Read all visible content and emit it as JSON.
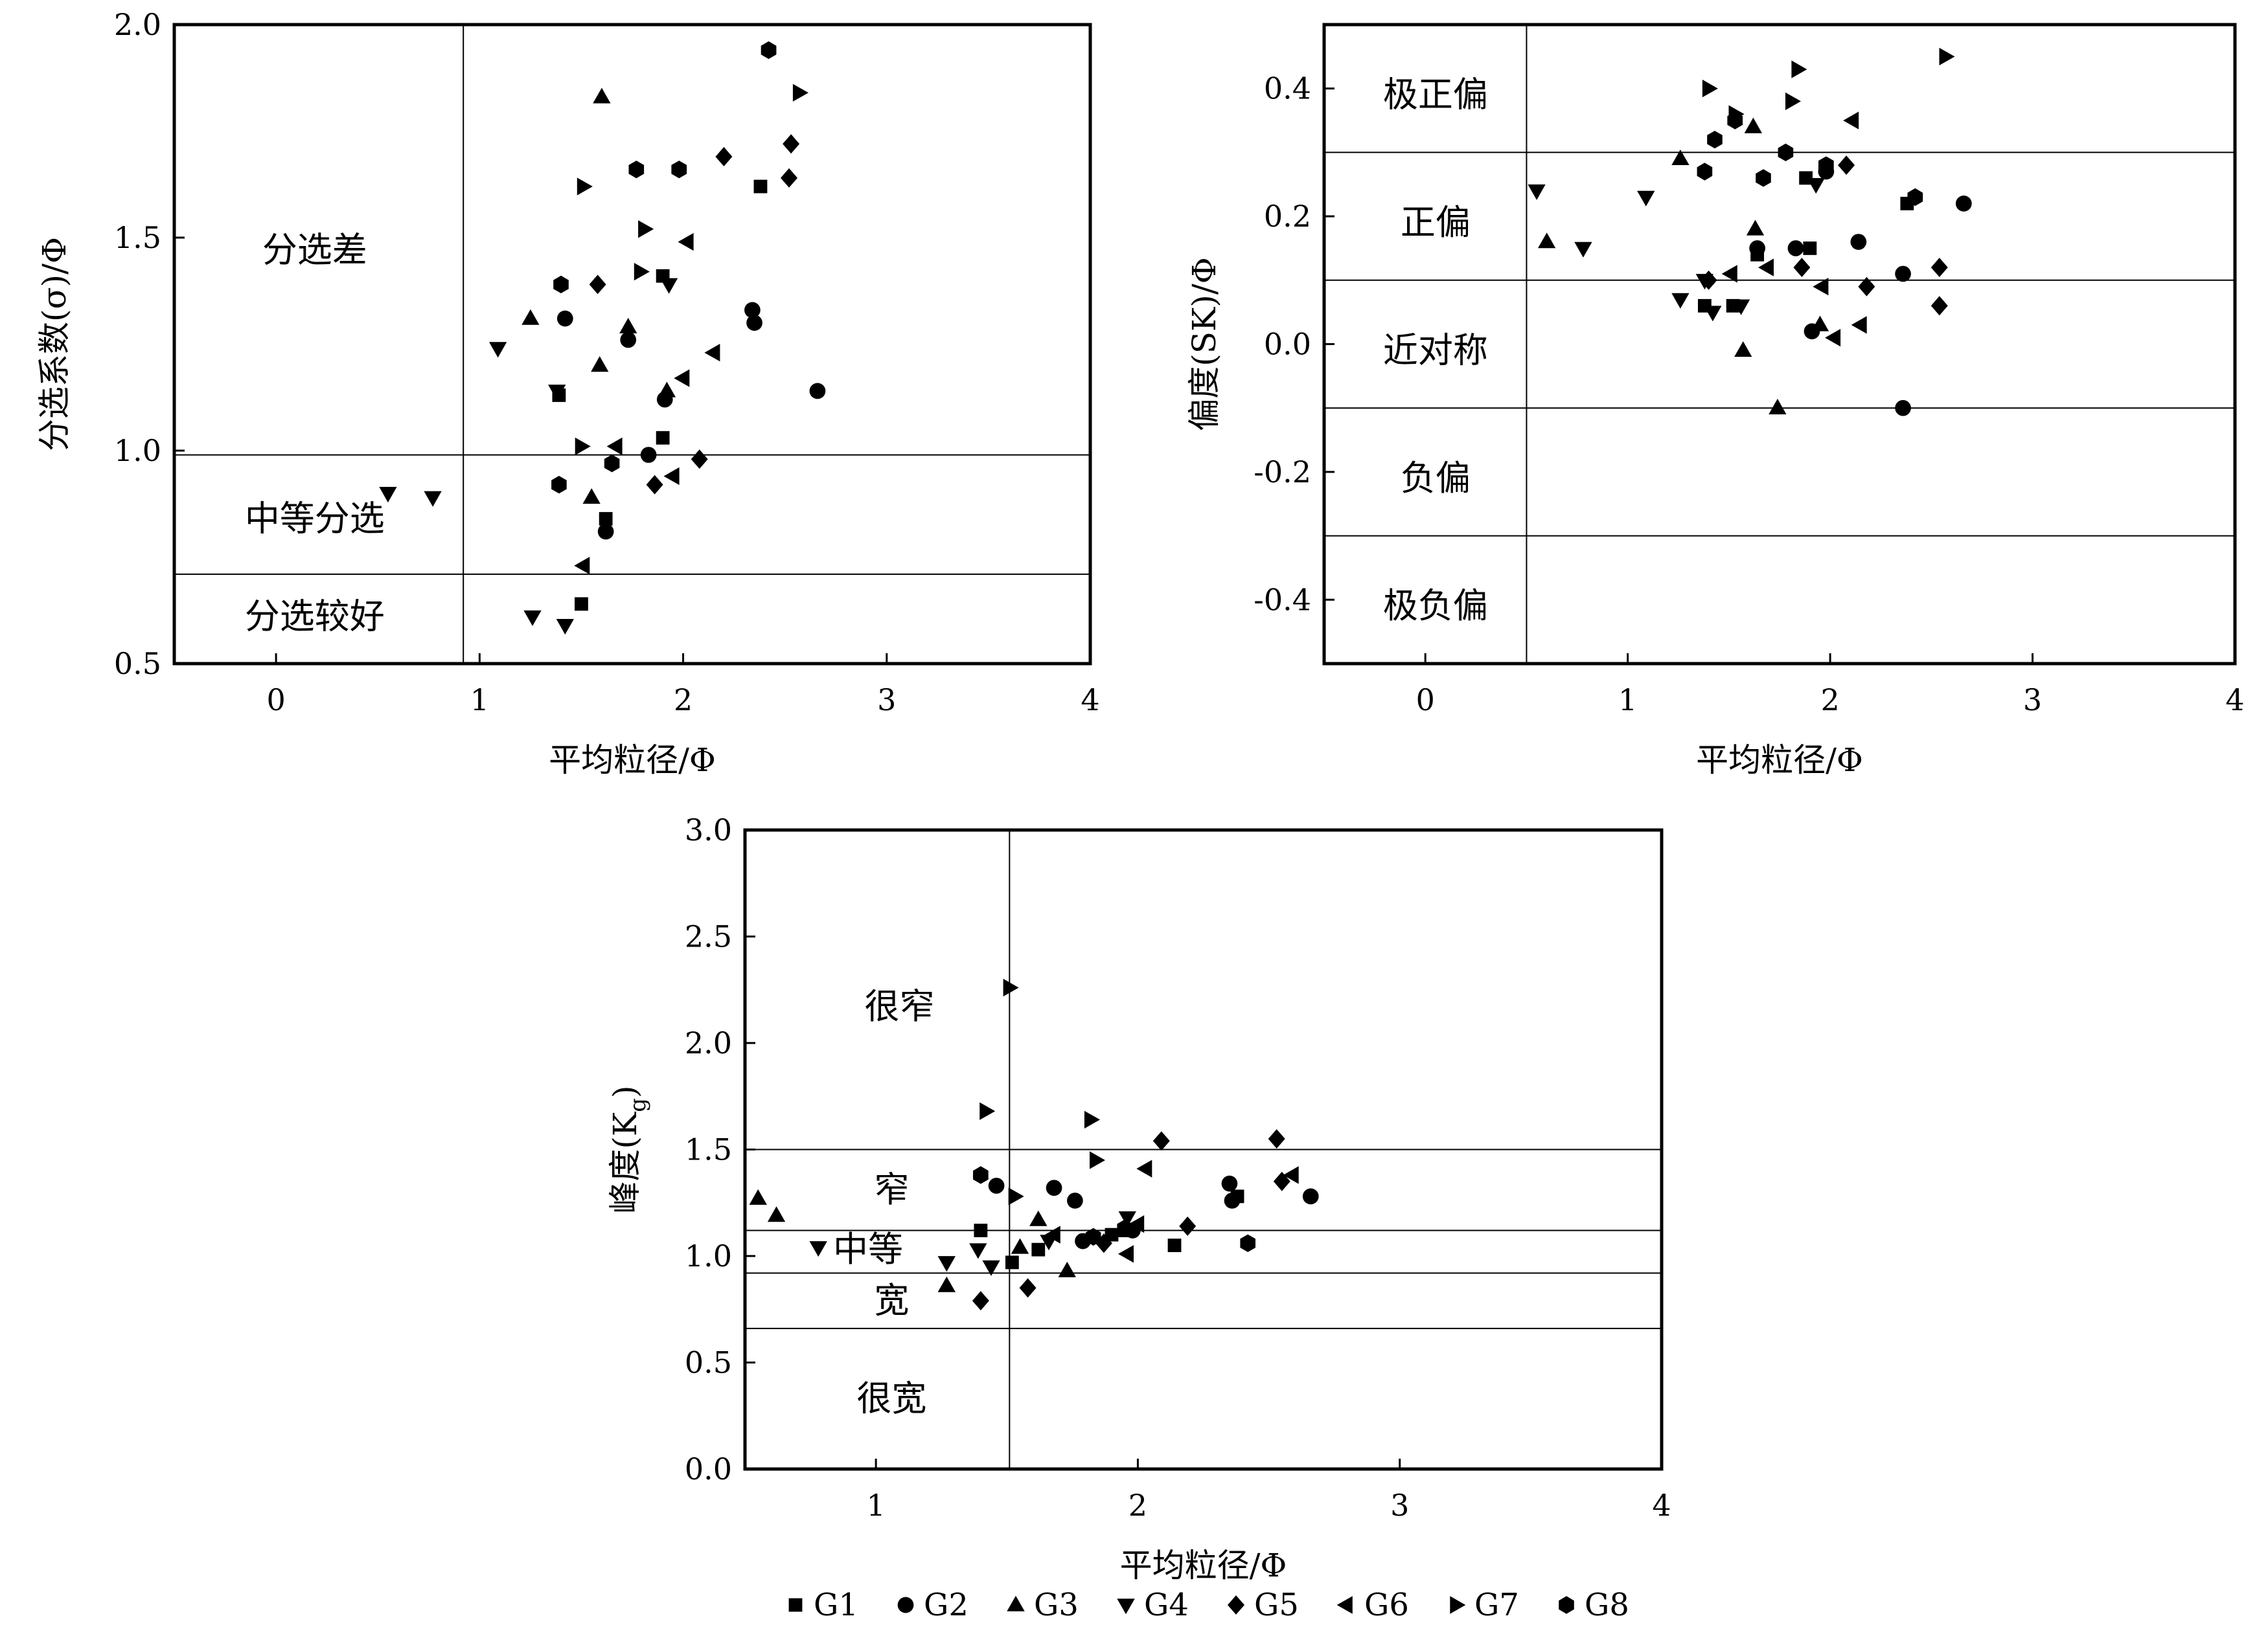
{
  "chart_data": [
    {
      "type": "scatter",
      "xlabel": "平均粒径/Φ",
      "ylabel": "分选系数(σ)/Φ",
      "xlim": [
        -0.5,
        4
      ],
      "ylim": [
        0.5,
        2.0
      ],
      "xticks": [
        0,
        1,
        2,
        3,
        4
      ],
      "yticks": [
        0.5,
        1.0,
        1.5,
        2.0
      ],
      "xtick_labels": [
        "0",
        "1",
        "2",
        "3",
        "4"
      ],
      "ytick_labels": [
        "0.5",
        "1.0",
        "1.5",
        "2.0"
      ],
      "vlines": [
        0.92
      ],
      "hlines": [
        0.99,
        0.71
      ],
      "regions": [
        {
          "label": "分选差",
          "x": 0.19,
          "y": 1.47
        },
        {
          "label": "中等分选",
          "x": 0.19,
          "y": 0.84
        },
        {
          "label": "分选较好",
          "x": 0.19,
          "y": 0.61
        }
      ],
      "series": [
        {
          "name": "G1",
          "points": [
            [
              1.39,
              1.13
            ],
            [
              1.62,
              0.84
            ],
            [
              1.9,
              1.41
            ],
            [
              2.38,
              1.62
            ],
            [
              1.5,
              0.64
            ],
            [
              1.9,
              1.03
            ]
          ]
        },
        {
          "name": "G2",
          "points": [
            [
              1.42,
              1.31
            ],
            [
              1.73,
              1.26
            ],
            [
              1.91,
              1.12
            ],
            [
              1.83,
              0.99
            ],
            [
              1.62,
              0.81
            ],
            [
              2.34,
              1.33
            ],
            [
              2.35,
              1.3
            ],
            [
              2.66,
              1.14
            ]
          ]
        },
        {
          "name": "G3",
          "points": [
            [
              1.6,
              1.83
            ],
            [
              1.25,
              1.31
            ],
            [
              1.59,
              1.2
            ],
            [
              1.73,
              1.29
            ],
            [
              1.55,
              0.89
            ],
            [
              1.92,
              1.14
            ]
          ]
        },
        {
          "name": "G4",
          "points": [
            [
              1.09,
              1.24
            ],
            [
              1.93,
              1.39
            ],
            [
              0.55,
              0.9
            ],
            [
              0.77,
              0.89
            ],
            [
              1.26,
              0.61
            ],
            [
              1.42,
              0.59
            ],
            [
              1.38,
              1.14
            ]
          ]
        },
        {
          "name": "G5",
          "points": [
            [
              2.2,
              1.69
            ],
            [
              2.53,
              1.72
            ],
            [
              2.52,
              1.64
            ],
            [
              1.58,
              1.39
            ],
            [
              2.08,
              0.98
            ],
            [
              1.86,
              0.92
            ]
          ]
        },
        {
          "name": "G6",
          "points": [
            [
              2.02,
              1.49
            ],
            [
              1.95,
              0.94
            ],
            [
              2.0,
              1.17
            ],
            [
              2.15,
              1.23
            ],
            [
              1.51,
              0.73
            ],
            [
              1.67,
              1.01
            ]
          ]
        },
        {
          "name": "G7",
          "points": [
            [
              2.57,
              1.84
            ],
            [
              1.51,
              1.62
            ],
            [
              1.81,
              1.52
            ],
            [
              1.79,
              1.42
            ],
            [
              1.5,
              1.01
            ]
          ]
        },
        {
          "name": "G8",
          "points": [
            [
              2.42,
              1.94
            ],
            [
              1.98,
              1.66
            ],
            [
              1.77,
              1.66
            ],
            [
              1.4,
              1.39
            ],
            [
              1.39,
              0.92
            ],
            [
              1.65,
              0.97
            ]
          ]
        }
      ]
    },
    {
      "type": "scatter",
      "xlabel": "平均粒径/Φ",
      "ylabel": "偏度(SK)/Φ",
      "xlim": [
        -0.5,
        4
      ],
      "ylim": [
        -0.5,
        0.5
      ],
      "xticks": [
        0,
        1,
        2,
        3,
        4
      ],
      "yticks": [
        -0.4,
        -0.2,
        0.0,
        0.2,
        0.4
      ],
      "xtick_labels": [
        "0",
        "1",
        "2",
        "3",
        "4"
      ],
      "ytick_labels": [
        "-0.4",
        "-0.2",
        "0.0",
        "0.2",
        "0.4"
      ],
      "vlines": [
        0.5
      ],
      "hlines": [
        0.3,
        0.1,
        -0.1,
        -0.3
      ],
      "regions": [
        {
          "label": "极正偏",
          "x": 0.05,
          "y": 0.39
        },
        {
          "label": "正偏",
          "x": 0.05,
          "y": 0.19
        },
        {
          "label": "近对称",
          "x": 0.05,
          "y": -0.01
        },
        {
          "label": "负偏",
          "x": 0.05,
          "y": -0.21
        },
        {
          "label": "极负偏",
          "x": 0.05,
          "y": -0.41
        }
      ],
      "series": [
        {
          "name": "G1",
          "points": [
            [
              1.38,
              0.06
            ],
            [
              1.52,
              0.06
            ],
            [
              1.9,
              0.15
            ],
            [
              2.38,
              0.22
            ],
            [
              1.64,
              0.14
            ],
            [
              1.88,
              0.26
            ]
          ]
        },
        {
          "name": "G2",
          "points": [
            [
              1.64,
              0.15
            ],
            [
              1.83,
              0.15
            ],
            [
              2.14,
              0.16
            ],
            [
              1.98,
              0.27
            ],
            [
              2.66,
              0.22
            ],
            [
              2.36,
              0.11
            ],
            [
              1.91,
              0.02
            ],
            [
              2.36,
              -0.1
            ]
          ]
        },
        {
          "name": "G3",
          "points": [
            [
              0.6,
              0.16
            ],
            [
              1.26,
              0.29
            ],
            [
              1.62,
              0.34
            ],
            [
              1.63,
              0.18
            ],
            [
              1.57,
              -0.01
            ],
            [
              1.74,
              -0.1
            ],
            [
              1.95,
              0.03
            ]
          ]
        },
        {
          "name": "G4",
          "points": [
            [
              0.55,
              0.24
            ],
            [
              0.78,
              0.15
            ],
            [
              1.09,
              0.23
            ],
            [
              1.26,
              0.07
            ],
            [
              1.38,
              0.1
            ],
            [
              1.42,
              0.05
            ],
            [
              1.56,
              0.06
            ],
            [
              1.93,
              0.25
            ]
          ]
        },
        {
          "name": "G5",
          "points": [
            [
              1.4,
              0.1
            ],
            [
              1.86,
              0.12
            ],
            [
              2.08,
              0.28
            ],
            [
              2.18,
              0.09
            ],
            [
              2.54,
              0.12
            ],
            [
              2.54,
              0.06
            ]
          ]
        },
        {
          "name": "G6",
          "points": [
            [
              1.51,
              0.11
            ],
            [
              1.69,
              0.12
            ],
            [
              1.96,
              0.09
            ],
            [
              2.02,
              0.01
            ],
            [
              2.15,
              0.03
            ],
            [
              2.11,
              0.35
            ]
          ]
        },
        {
          "name": "G7",
          "points": [
            [
              1.4,
              0.4
            ],
            [
              1.53,
              0.36
            ],
            [
              1.81,
              0.38
            ],
            [
              1.84,
              0.43
            ],
            [
              2.57,
              0.45
            ]
          ]
        },
        {
          "name": "G8",
          "points": [
            [
              1.38,
              0.27
            ],
            [
              1.43,
              0.32
            ],
            [
              1.53,
              0.35
            ],
            [
              1.67,
              0.26
            ],
            [
              1.78,
              0.3
            ],
            [
              1.98,
              0.28
            ],
            [
              2.42,
              0.23
            ]
          ]
        }
      ]
    },
    {
      "type": "scatter",
      "xlabel": "平均粒径/Φ",
      "ylabel": "峰度(K",
      "ylabel_sub": "g",
      "ylabel_end": ")",
      "xlim": [
        0.5,
        4
      ],
      "ylim": [
        0.0,
        3.0
      ],
      "xticks": [
        1,
        2,
        3,
        4
      ],
      "yticks": [
        0.0,
        0.5,
        1.0,
        1.5,
        2.0,
        2.5,
        3.0
      ],
      "xtick_labels": [
        "1",
        "2",
        "3",
        "4"
      ],
      "ytick_labels": [
        "0.0",
        "0.5",
        "1.0",
        "1.5",
        "2.0",
        "2.5",
        "3.0"
      ],
      "vlines": [
        1.51
      ],
      "hlines": [
        1.5,
        1.12,
        0.92,
        0.66
      ],
      "regions": [
        {
          "label": "很窄",
          "x": 1.09,
          "y": 2.17
        },
        {
          "label": "窄",
          "x": 1.06,
          "y": 1.31
        },
        {
          "label": "中等",
          "x": 0.97,
          "y": 1.03
        },
        {
          "label": "宽",
          "x": 1.06,
          "y": 0.79
        },
        {
          "label": "很宽",
          "x": 1.06,
          "y": 0.33
        }
      ],
      "series": [
        {
          "name": "G1",
          "points": [
            [
              1.4,
              1.12
            ],
            [
              1.52,
              0.97
            ],
            [
              1.62,
              1.03
            ],
            [
              1.9,
              1.1
            ],
            [
              2.14,
              1.05
            ],
            [
              2.38,
              1.28
            ],
            [
              1.95,
              1.12
            ]
          ]
        },
        {
          "name": "G2",
          "points": [
            [
              1.46,
              1.33
            ],
            [
              1.68,
              1.32
            ],
            [
              1.76,
              1.26
            ],
            [
              1.79,
              1.07
            ],
            [
              1.98,
              1.12
            ],
            [
              2.35,
              1.34
            ],
            [
              2.36,
              1.26
            ],
            [
              2.66,
              1.28
            ]
          ]
        },
        {
          "name": "G3",
          "points": [
            [
              0.55,
              1.27
            ],
            [
              0.62,
              1.19
            ],
            [
              1.27,
              0.86
            ],
            [
              1.55,
              1.04
            ],
            [
              1.62,
              1.17
            ],
            [
              1.73,
              0.93
            ],
            [
              1.95,
              1.13
            ]
          ]
        },
        {
          "name": "G4",
          "points": [
            [
              0.78,
              1.04
            ],
            [
              1.27,
              0.97
            ],
            [
              1.39,
              1.03
            ],
            [
              1.44,
              0.95
            ],
            [
              1.66,
              1.07
            ],
            [
              1.96,
              1.18
            ]
          ]
        },
        {
          "name": "G5",
          "points": [
            [
              1.4,
              0.79
            ],
            [
              1.58,
              0.85
            ],
            [
              2.09,
              1.54
            ],
            [
              2.53,
              1.55
            ],
            [
              2.55,
              1.35
            ],
            [
              2.19,
              1.14
            ],
            [
              1.87,
              1.06
            ]
          ]
        },
        {
          "name": "G6",
          "points": [
            [
              2.03,
              1.41
            ],
            [
              1.96,
              1.01
            ],
            [
              2.0,
              1.15
            ],
            [
              1.68,
              1.1
            ],
            [
              2.59,
              1.38
            ]
          ]
        },
        {
          "name": "G7",
          "points": [
            [
              1.51,
              2.26
            ],
            [
              1.42,
              1.68
            ],
            [
              1.82,
              1.64
            ],
            [
              1.84,
              1.45
            ],
            [
              1.53,
              1.28
            ]
          ]
        },
        {
          "name": "G8",
          "points": [
            [
              1.4,
              1.38
            ],
            [
              1.83,
              1.09
            ],
            [
              2.42,
              1.06
            ],
            [
              1.95,
              1.13
            ]
          ]
        }
      ]
    }
  ],
  "legend": {
    "position": "bottom-center",
    "items": [
      {
        "name": "G1",
        "marker": "square"
      },
      {
        "name": "G2",
        "marker": "circle"
      },
      {
        "name": "G3",
        "marker": "triangle-up"
      },
      {
        "name": "G4",
        "marker": "triangle-down"
      },
      {
        "name": "G5",
        "marker": "diamond"
      },
      {
        "name": "G6",
        "marker": "triangle-left"
      },
      {
        "name": "G7",
        "marker": "triangle-right"
      },
      {
        "name": "G8",
        "marker": "hexagon"
      }
    ]
  },
  "colors": {
    "marker": "#000000",
    "frame": "#000000",
    "background": "#ffffff"
  }
}
